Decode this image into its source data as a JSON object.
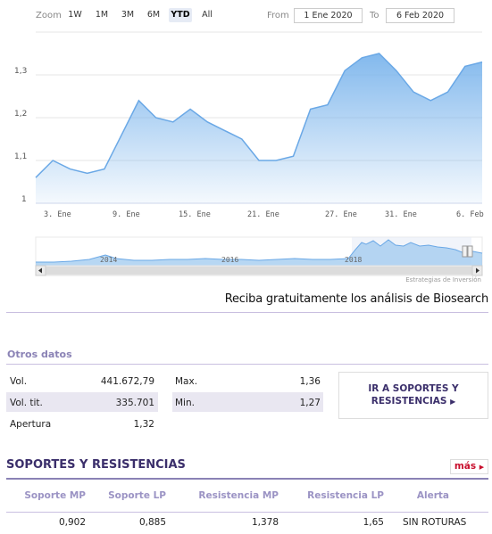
{
  "toolbar": {
    "zoom_label": "Zoom",
    "buttons": [
      "1W",
      "1M",
      "3M",
      "6M",
      "YTD",
      "All"
    ],
    "active": "YTD",
    "from_label": "From",
    "from_value": "1 Ene 2020",
    "to_label": "To",
    "to_value": "6 Feb 2020"
  },
  "chart_data": {
    "type": "area",
    "y_ticks": [
      "1,3",
      "1,2",
      "1,1",
      "1"
    ],
    "x_ticks": [
      "3. Ene",
      "9. Ene",
      "15. Ene",
      "21. Ene",
      "27. Ene",
      "31. Ene",
      "6. Feb"
    ],
    "ylim": [
      1.0,
      1.4
    ],
    "values": [
      1.06,
      1.1,
      1.08,
      1.07,
      1.08,
      1.16,
      1.24,
      1.2,
      1.19,
      1.22,
      1.19,
      1.17,
      1.15,
      1.1,
      1.1,
      1.11,
      1.22,
      1.23,
      1.31,
      1.34,
      1.35,
      1.31,
      1.26,
      1.24,
      1.26,
      1.32,
      1.33
    ],
    "navigator_years": [
      "2014",
      "2016",
      "2018"
    ],
    "color": "#7cb5ec"
  },
  "credits": "Estrategias de Inversión",
  "cta": "Reciba gratuitamente los análisis de Biosearch",
  "otros": {
    "title": "Otros datos",
    "rows": [
      {
        "label": "Vol.",
        "value": "441.672,79",
        "label2": "Max.",
        "value2": "1,36"
      },
      {
        "label": "Vol. tit.",
        "value": "335.701",
        "label2": "Min.",
        "value2": "1,27"
      },
      {
        "label": "Apertura",
        "value": "1,32"
      }
    ],
    "button_line1": "IR A SOPORTES Y",
    "button_line2": "RESISTENCIAS"
  },
  "sr": {
    "title": "SOPORTES Y RESISTENCIAS",
    "more": "más",
    "headers": [
      "Soporte MP",
      "Soporte LP",
      "Resistencia MP",
      "Resistencia LP",
      "Alerta"
    ],
    "row": [
      "0,902",
      "0,885",
      "1,378",
      "1,65",
      "SIN ROTURAS"
    ]
  }
}
